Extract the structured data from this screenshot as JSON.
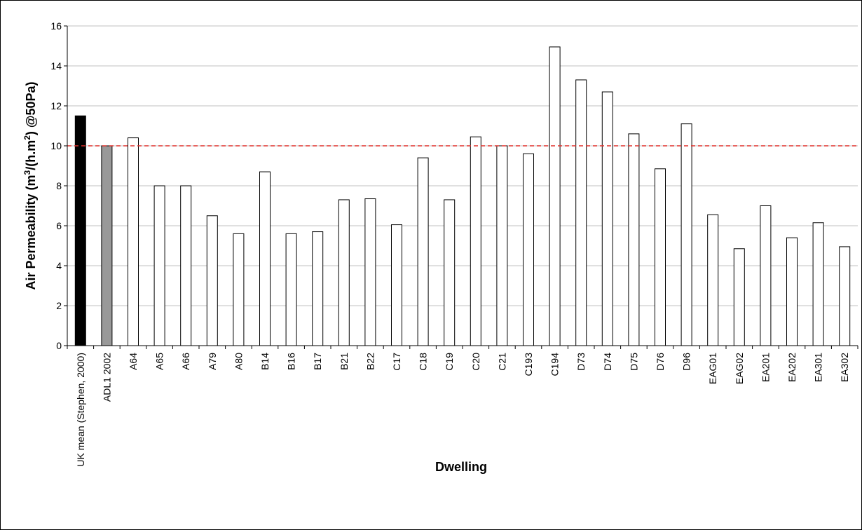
{
  "chart_data": {
    "type": "bar",
    "xlabel": "Dwelling",
    "ylabel": {
      "prefix": "Air Permeability (m",
      "sup1": "3",
      "middle": "/(h.m",
      "sup2": "2",
      "suffix": ") @50Pa)"
    },
    "ylim": [
      0,
      16
    ],
    "yticks": [
      0,
      2,
      4,
      6,
      8,
      10,
      12,
      14,
      16
    ],
    "grid": true,
    "legend": "none",
    "reference_line": {
      "value": 10,
      "style": "dashed",
      "color": "#e0312b"
    },
    "colors": {
      "uk_mean": "#000000",
      "adl1": "#999999",
      "dwelling": "#ffffff",
      "bar_border": "#000000",
      "grid": "#c0c0c0"
    },
    "categories": [
      "UK mean (Stephen, 2000)",
      "ADL1 2002",
      "A64",
      "A65",
      "A66",
      "A79",
      "A80",
      "B14",
      "B16",
      "B17",
      "B21",
      "B22",
      "C17",
      "C18",
      "C19",
      "C20",
      "C21",
      "C193",
      "C194",
      "D73",
      "D74",
      "D75",
      "D76",
      "D96",
      "EAG01",
      "EAG02",
      "EA201",
      "EA202",
      "EA301",
      "EA302"
    ],
    "values": [
      11.5,
      10.0,
      10.4,
      8.0,
      8.0,
      6.5,
      5.6,
      8.7,
      5.6,
      5.7,
      7.3,
      7.35,
      6.05,
      9.4,
      7.3,
      10.45,
      10.0,
      9.6,
      14.95,
      13.3,
      12.7,
      10.6,
      8.85,
      11.1,
      6.55,
      4.85,
      7.0,
      5.4,
      6.15,
      4.95
    ],
    "bar_colors": [
      "uk_mean",
      "adl1",
      "dwelling",
      "dwelling",
      "dwelling",
      "dwelling",
      "dwelling",
      "dwelling",
      "dwelling",
      "dwelling",
      "dwelling",
      "dwelling",
      "dwelling",
      "dwelling",
      "dwelling",
      "dwelling",
      "dwelling",
      "dwelling",
      "dwelling",
      "dwelling",
      "dwelling",
      "dwelling",
      "dwelling",
      "dwelling",
      "dwelling",
      "dwelling",
      "dwelling",
      "dwelling",
      "dwelling",
      "dwelling"
    ]
  }
}
